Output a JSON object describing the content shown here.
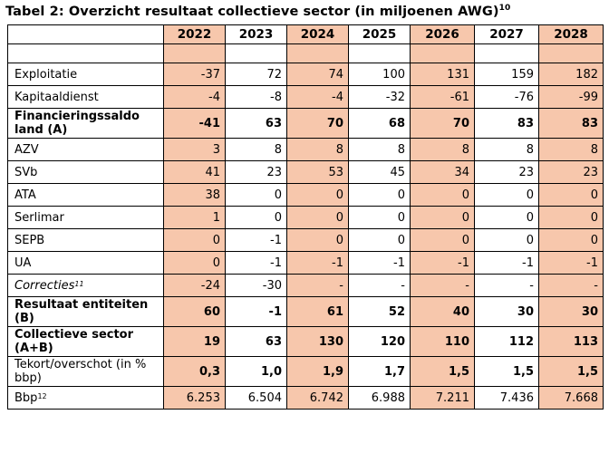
{
  "title": {
    "text": "Tabel 2: Overzicht resultaat collectieve sector (in miljoenen AWG)",
    "footnote": "10"
  },
  "columns": [
    "2022",
    "2023",
    "2024",
    "2025",
    "2026",
    "2027",
    "2028"
  ],
  "shaded_columns": [
    0,
    2,
    4,
    6
  ],
  "colors": {
    "shade": "#f7c7ac",
    "border": "#000000"
  },
  "rows": [
    {
      "label": "Exploitatie",
      "values": [
        "-37",
        "72",
        "74",
        "100",
        "131",
        "159",
        "182"
      ],
      "bold": false,
      "italic": false
    },
    {
      "label": "Kapitaaldienst",
      "values": [
        "-4",
        "-8",
        "-4",
        "-32",
        "-61",
        "-76",
        "-99"
      ],
      "bold": false,
      "italic": false
    },
    {
      "label": "Financieringssaldo land (A)",
      "values": [
        "-41",
        "63",
        "70",
        "68",
        "70",
        "83",
        "83"
      ],
      "bold": true,
      "italic": false,
      "tall": true
    },
    {
      "label": "AZV",
      "values": [
        "3",
        "8",
        "8",
        "8",
        "8",
        "8",
        "8"
      ],
      "bold": false,
      "italic": false
    },
    {
      "label": "SVb",
      "values": [
        "41",
        "23",
        "53",
        "45",
        "34",
        "23",
        "23"
      ],
      "bold": false,
      "italic": false
    },
    {
      "label": "ATA",
      "values": [
        "38",
        "0",
        "0",
        "0",
        "0",
        "0",
        "0"
      ],
      "bold": false,
      "italic": false
    },
    {
      "label": "Serlimar",
      "values": [
        "1",
        "0",
        "0",
        "0",
        "0",
        "0",
        "0"
      ],
      "bold": false,
      "italic": false
    },
    {
      "label": "SEPB",
      "values": [
        "0",
        "-1",
        "0",
        "0",
        "0",
        "0",
        "0"
      ],
      "bold": false,
      "italic": false
    },
    {
      "label": "UA",
      "values": [
        "0",
        "-1",
        "-1",
        "-1",
        "-1",
        "-1",
        "-1"
      ],
      "bold": false,
      "italic": false
    },
    {
      "label": "Correcties",
      "footnote": "11",
      "values": [
        "-24",
        "-30",
        "-",
        "-",
        "-",
        "-",
        "-"
      ],
      "bold": false,
      "italic": true
    },
    {
      "label": "Resultaat entiteiten (B)",
      "values": [
        "60",
        "-1",
        "61",
        "52",
        "40",
        "30",
        "30"
      ],
      "bold": true,
      "italic": false,
      "tall": true
    },
    {
      "label": "Collectieve sector (A+B)",
      "values": [
        "19",
        "63",
        "130",
        "120",
        "110",
        "112",
        "113"
      ],
      "bold": true,
      "italic": false,
      "tall": true
    },
    {
      "label": "Tekort/overschot (in % bbp)",
      "values": [
        "0,3",
        "1,0",
        "1,9",
        "1,7",
        "1,5",
        "1,5",
        "1,5"
      ],
      "bold": false,
      "valuesBold": true,
      "italic": false,
      "tall": true
    },
    {
      "label": "Bbp",
      "footnote": "12",
      "values": [
        "6.253",
        "6.504",
        "6.742",
        "6.988",
        "7.211",
        "7.436",
        "7.668"
      ],
      "bold": false,
      "italic": false
    }
  ]
}
